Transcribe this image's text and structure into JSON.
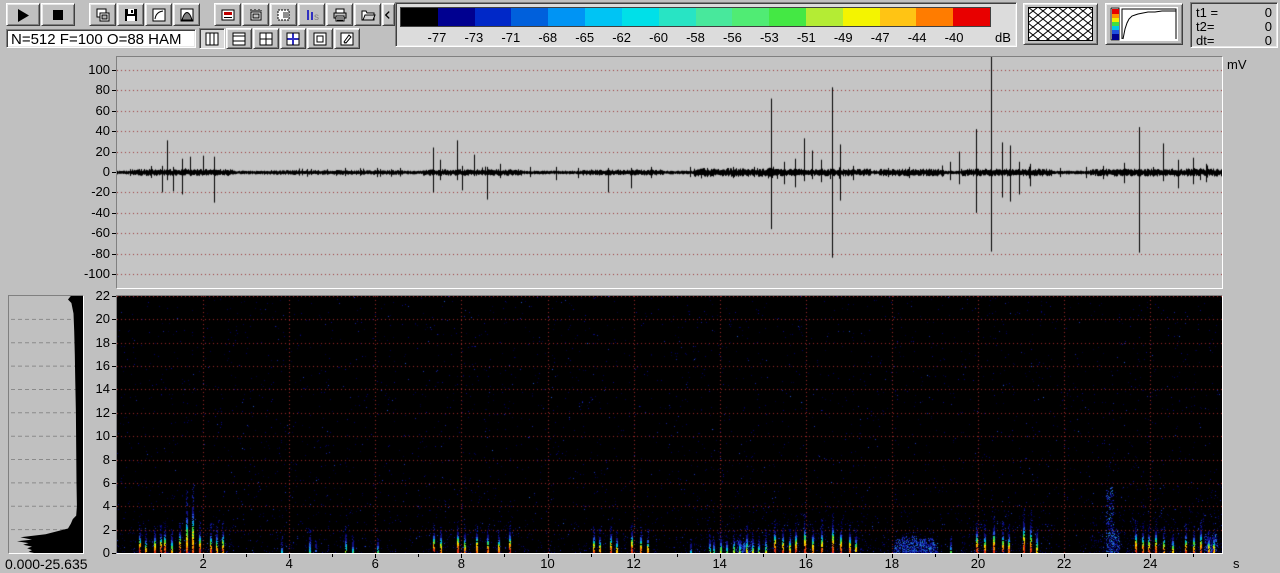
{
  "window": {
    "bg": "#c0c0c0"
  },
  "toolbar": {
    "status_text": "N=512 F=100 O=88 HAM",
    "buttons_row1": [
      "play",
      "stop",
      "gap",
      "copy",
      "save",
      "transfer-curve",
      "window-shape",
      "gap",
      "display-range",
      "time-scale",
      "select-region",
      "fft-size",
      "print",
      "open-file",
      "prev-page",
      "next-page"
    ],
    "buttons_row2": [
      "layout-oscillogram",
      "layout-spectrogram",
      "layout-split",
      "layout-combined",
      "layout-single",
      "annotate"
    ],
    "row2_pressed_index": 0,
    "time_panel": [
      {
        "label": "t1 =",
        "value": "0"
      },
      {
        "label": "t2=",
        "value": "0"
      },
      {
        "label": "dt=",
        "value": "0"
      }
    ]
  },
  "colorbar": {
    "unit": "dB",
    "segment_colors": [
      "#000000",
      "#000090",
      "#0028c8",
      "#0060dc",
      "#0094f4",
      "#00c4f4",
      "#00e0e8",
      "#28e4c4",
      "#48e89c",
      "#50ec74",
      "#44e844",
      "#b4ec34",
      "#f4f400",
      "#ffc414",
      "#ff7c00",
      "#e80000"
    ],
    "boundary_labels": [
      "-77",
      "-73",
      "-71",
      "-68",
      "-65",
      "-62",
      "-60",
      "-58",
      "-56",
      "-53",
      "-51",
      "-49",
      "-47",
      "-44",
      "-40"
    ]
  },
  "chart_data": [
    {
      "type": "line",
      "name": "oscillogram",
      "ylabel": "mV",
      "ylim": [
        -100,
        100
      ],
      "yticks": [
        100,
        80,
        60,
        40,
        20,
        0,
        -20,
        -40,
        -60,
        -80,
        -100
      ],
      "xlim": [
        0,
        25.635
      ],
      "grid": "horizontal-dotted-red",
      "trace_color": "#000000",
      "spikes": [
        [
          1.05,
          6,
          -20
        ],
        [
          1.15,
          31,
          -8
        ],
        [
          1.3,
          5,
          -19
        ],
        [
          1.5,
          13,
          -22
        ],
        [
          1.7,
          15,
          -4
        ],
        [
          2.0,
          16,
          -3
        ],
        [
          2.25,
          15,
          -30
        ],
        [
          4.5,
          3,
          -3
        ],
        [
          5.3,
          4,
          -4
        ],
        [
          6.05,
          4,
          -5
        ],
        [
          7.35,
          24,
          -20
        ],
        [
          7.5,
          12,
          -8
        ],
        [
          7.9,
          31,
          -8
        ],
        [
          8.02,
          6,
          -18
        ],
        [
          8.3,
          17,
          -4
        ],
        [
          8.6,
          5,
          -27
        ],
        [
          8.9,
          8,
          -6
        ],
        [
          9.6,
          5,
          -5
        ],
        [
          10.2,
          5,
          -8
        ],
        [
          10.7,
          4,
          -6
        ],
        [
          11.4,
          4,
          -20
        ],
        [
          11.95,
          4,
          -16
        ],
        [
          12.4,
          5,
          -6
        ],
        [
          13.3,
          5,
          -5
        ],
        [
          13.7,
          4,
          -5
        ],
        [
          14.3,
          5,
          -6
        ],
        [
          14.8,
          5,
          -5
        ],
        [
          15.2,
          72,
          -56
        ],
        [
          15.5,
          10,
          -12
        ],
        [
          15.75,
          13,
          -15
        ],
        [
          15.95,
          33,
          -9
        ],
        [
          16.15,
          21,
          -7
        ],
        [
          16.35,
          12,
          -10
        ],
        [
          16.6,
          83,
          -84
        ],
        [
          16.8,
          27,
          -28
        ],
        [
          17.1,
          6,
          -8
        ],
        [
          17.9,
          4,
          -5
        ],
        [
          18.4,
          5,
          -6
        ],
        [
          19.35,
          10,
          -8
        ],
        [
          19.55,
          20,
          -12
        ],
        [
          19.95,
          42,
          -40
        ],
        [
          20.3,
          113,
          -78
        ],
        [
          20.55,
          29,
          -25
        ],
        [
          20.75,
          26,
          -29
        ],
        [
          20.95,
          10,
          -22
        ],
        [
          21.2,
          8,
          -14
        ],
        [
          21.9,
          4,
          -5
        ],
        [
          22.5,
          5,
          -6
        ],
        [
          22.9,
          6,
          -7
        ],
        [
          23.4,
          9,
          -11
        ],
        [
          23.75,
          44,
          -79
        ],
        [
          24.3,
          28,
          -9
        ],
        [
          24.65,
          12,
          -16
        ],
        [
          25.0,
          14,
          -12
        ],
        [
          25.3,
          8,
          -10
        ]
      ]
    },
    {
      "type": "heatmap",
      "name": "spectrogram",
      "xlabel": "s",
      "ylim": [
        0,
        22
      ],
      "yticks": [
        22,
        20,
        18,
        16,
        14,
        12,
        10,
        8,
        6,
        4,
        2,
        0
      ],
      "xticks": [
        2,
        4,
        6,
        8,
        10,
        12,
        14,
        16,
        18,
        20,
        22,
        24
      ],
      "grid": "dotted-red",
      "background": "#000000",
      "calls": [
        [
          0.5,
          1.6,
          0.9
        ],
        [
          0.65,
          1.3,
          0.7
        ],
        [
          0.85,
          1.5,
          0.8
        ],
        [
          1.0,
          1.6,
          0.85
        ],
        [
          1.1,
          1.7,
          0.9
        ],
        [
          1.25,
          1.4,
          0.6
        ],
        [
          1.45,
          1.8,
          0.9
        ],
        [
          1.6,
          3.6,
          0.75
        ],
        [
          1.75,
          3.9,
          0.8
        ],
        [
          1.9,
          1.8,
          0.9
        ],
        [
          2.15,
          1.7,
          0.8
        ],
        [
          2.3,
          1.6,
          0.7
        ],
        [
          2.45,
          1.8,
          0.8
        ],
        [
          3.8,
          0.9,
          0.3
        ],
        [
          4.45,
          1.4,
          0.35
        ],
        [
          4.6,
          0.8,
          0.3
        ],
        [
          5.3,
          1.5,
          0.45
        ],
        [
          5.45,
          0.9,
          0.35
        ],
        [
          6.05,
          0.9,
          0.4
        ],
        [
          7.35,
          1.7,
          0.9
        ],
        [
          7.5,
          1.5,
          0.8
        ],
        [
          7.9,
          1.8,
          0.9
        ],
        [
          8.05,
          1.5,
          0.7
        ],
        [
          8.35,
          1.6,
          0.85
        ],
        [
          8.6,
          1.5,
          0.8
        ],
        [
          8.85,
          1.4,
          0.75
        ],
        [
          9.1,
          1.8,
          0.85
        ],
        [
          11.05,
          1.5,
          0.8
        ],
        [
          11.2,
          1.4,
          0.7
        ],
        [
          11.45,
          1.6,
          0.85
        ],
        [
          11.6,
          1.3,
          0.6
        ],
        [
          11.95,
          1.7,
          0.9
        ],
        [
          12.15,
          1.5,
          0.8
        ],
        [
          12.3,
          1.4,
          0.7
        ],
        [
          13.3,
          0.8,
          0.3
        ],
        [
          13.75,
          1.1,
          0.45
        ],
        [
          13.85,
          0.9,
          0.4
        ],
        [
          14.0,
          1.2,
          0.5
        ],
        [
          14.15,
          1.0,
          0.4
        ],
        [
          14.3,
          1.3,
          0.5
        ],
        [
          14.45,
          1.1,
          0.45
        ],
        [
          14.6,
          1.5,
          0.55
        ],
        [
          14.75,
          1.2,
          0.5
        ],
        [
          14.9,
          1.0,
          0.45
        ],
        [
          15.05,
          1.3,
          0.5
        ],
        [
          15.25,
          2.0,
          0.9
        ],
        [
          15.45,
          1.6,
          0.8
        ],
        [
          15.6,
          1.4,
          0.7
        ],
        [
          15.75,
          1.8,
          0.85
        ],
        [
          15.95,
          2.2,
          0.9
        ],
        [
          16.15,
          1.6,
          0.75
        ],
        [
          16.35,
          1.9,
          0.85
        ],
        [
          16.6,
          2.4,
          0.95
        ],
        [
          16.8,
          1.8,
          0.85
        ],
        [
          17.0,
          1.6,
          0.8
        ],
        [
          17.15,
          1.4,
          0.7
        ],
        [
          19.35,
          0.9,
          0.4
        ],
        [
          19.95,
          1.9,
          0.9
        ],
        [
          20.15,
          1.6,
          0.8
        ],
        [
          20.35,
          2.1,
          0.9
        ],
        [
          20.55,
          1.8,
          0.85
        ],
        [
          20.7,
          1.6,
          0.8
        ],
        [
          21.05,
          2.6,
          0.9
        ],
        [
          21.2,
          2.3,
          0.85
        ],
        [
          21.35,
          1.5,
          0.6
        ],
        [
          23.65,
          1.9,
          0.9
        ],
        [
          23.8,
          1.7,
          0.85
        ],
        [
          23.95,
          1.6,
          0.8
        ],
        [
          24.1,
          1.8,
          0.85
        ],
        [
          24.3,
          1.5,
          0.75
        ],
        [
          24.5,
          1.3,
          0.6
        ],
        [
          24.8,
          1.7,
          0.8
        ],
        [
          25.0,
          1.5,
          0.75
        ],
        [
          25.15,
          1.9,
          0.85
        ],
        [
          25.35,
          1.3,
          0.7
        ],
        [
          25.45,
          1.4,
          0.7
        ]
      ],
      "noise_bands": [
        [
          0.3,
          2.7,
          2.2,
          0.1
        ],
        [
          3.4,
          6.6,
          1.4,
          0.035
        ],
        [
          7.1,
          9.4,
          2.0,
          0.09
        ],
        [
          10.8,
          12.7,
          1.8,
          0.07
        ],
        [
          13.4,
          15.35,
          2.6,
          0.16
        ],
        [
          15.1,
          17.5,
          3.2,
          0.12
        ],
        [
          17.7,
          19.2,
          2.0,
          0.12
        ],
        [
          19.6,
          21.7,
          3.0,
          0.13
        ],
        [
          22.6,
          25.66,
          4.0,
          0.13
        ],
        [
          22.9,
          24.3,
          14.0,
          0.015
        ]
      ],
      "blobs": [
        [
          14.55,
          1.0,
          0.35
        ],
        [
          18.2,
          1.1,
          0.3
        ],
        [
          18.4,
          1.4,
          0.35
        ],
        [
          18.6,
          1.0,
          0.4
        ],
        [
          18.8,
          1.2,
          0.35
        ],
        [
          18.95,
          0.8,
          0.2
        ],
        [
          23.05,
          5.6,
          0.18
        ],
        [
          23.15,
          2.0,
          0.25
        ],
        [
          25.4,
          1.6,
          0.3
        ]
      ]
    },
    {
      "type": "area",
      "name": "average-spectrum",
      "range_label": "0.000-25.635",
      "profile": [
        [
          22,
          0.18
        ],
        [
          21.7,
          0.22
        ],
        [
          21.4,
          0.17
        ],
        [
          20.5,
          0.14
        ],
        [
          19,
          0.13
        ],
        [
          17,
          0.12
        ],
        [
          15,
          0.115
        ],
        [
          12,
          0.105
        ],
        [
          9,
          0.1
        ],
        [
          6,
          0.095
        ],
        [
          4,
          0.09
        ],
        [
          3.2,
          0.1
        ],
        [
          2.9,
          0.15
        ],
        [
          2.5,
          0.18
        ],
        [
          2.1,
          0.22
        ],
        [
          1.9,
          0.35
        ],
        [
          1.6,
          0.55
        ],
        [
          1.35,
          0.92
        ],
        [
          1.15,
          0.75
        ],
        [
          1.0,
          0.97
        ],
        [
          0.85,
          0.8
        ],
        [
          0.7,
          0.88
        ],
        [
          0.55,
          0.75
        ],
        [
          0.4,
          0.82
        ],
        [
          0.25,
          0.75
        ],
        [
          0.1,
          0.8
        ],
        [
          0,
          0.72
        ]
      ]
    }
  ]
}
